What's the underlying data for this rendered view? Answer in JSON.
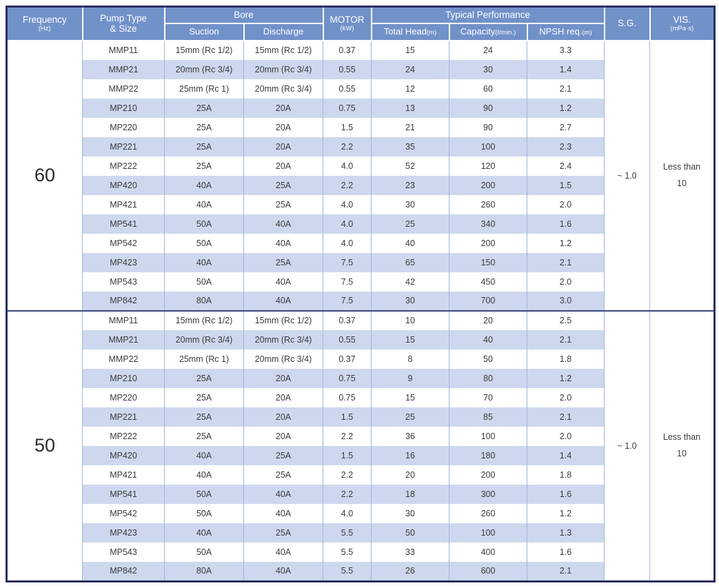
{
  "header": {
    "frequency_label": "Frequency",
    "frequency_unit": "(Hz)",
    "pump_type_line1": "Pump Type",
    "pump_type_line2": "& Size",
    "bore_label": "Bore",
    "suction_label": "Suction",
    "discharge_label": "Discharge",
    "motor_label": "MOTOR",
    "motor_unit": "(kW)",
    "performance_label": "Typical Performance",
    "total_head_label": "Total Head",
    "total_head_unit": "(m)",
    "capacity_label": "Capacity",
    "capacity_unit": "(ℓ/min.)",
    "npsh_label": "NPSH req.",
    "npsh_unit": "(m)",
    "sg_label": "S.G.",
    "vis_label": "VIS.",
    "vis_unit": "(mPa·s)"
  },
  "column_keys": [
    "pump-model",
    "bore-suction",
    "bore-discharge",
    "motor-kw",
    "total-head",
    "capacity",
    "npsh-req"
  ],
  "sections": [
    {
      "frequency": "60",
      "sg": "~ 1.0",
      "vis_lines": [
        "Less than",
        "10"
      ],
      "rows": [
        [
          "MMP11",
          "15mm (Rc 1/2)",
          "15mm (Rc 1/2)",
          "0.37",
          "15",
          "24",
          "3.3"
        ],
        [
          "MMP21",
          "20mm (Rc 3/4)",
          "20mm (Rc 3/4)",
          "0.55",
          "24",
          "30",
          "1.4"
        ],
        [
          "MMP22",
          "25mm (Rc 1)",
          "20mm (Rc 3/4)",
          "0.55",
          "12",
          "60",
          "2.1"
        ],
        [
          "MP210",
          "25A",
          "20A",
          "0.75",
          "13",
          "90",
          "1.2"
        ],
        [
          "MP220",
          "25A",
          "20A",
          "1.5",
          "21",
          "90",
          "2.7"
        ],
        [
          "MP221",
          "25A",
          "20A",
          "2.2",
          "35",
          "100",
          "2.3"
        ],
        [
          "MP222",
          "25A",
          "20A",
          "4.0",
          "52",
          "120",
          "2.4"
        ],
        [
          "MP420",
          "40A",
          "25A",
          "2.2",
          "23",
          "200",
          "1.5"
        ],
        [
          "MP421",
          "40A",
          "25A",
          "4.0",
          "30",
          "260",
          "2.0"
        ],
        [
          "MP541",
          "50A",
          "40A",
          "4.0",
          "25",
          "340",
          "1.6"
        ],
        [
          "MP542",
          "50A",
          "40A",
          "4.0",
          "40",
          "200",
          "1.2"
        ],
        [
          "MP423",
          "40A",
          "25A",
          "7.5",
          "65",
          "150",
          "2.1"
        ],
        [
          "MP543",
          "50A",
          "40A",
          "7.5",
          "42",
          "450",
          "2.0"
        ],
        [
          "MP842",
          "80A",
          "40A",
          "7.5",
          "30",
          "700",
          "3.0"
        ]
      ]
    },
    {
      "frequency": "50",
      "sg": "~ 1.0",
      "vis_lines": [
        "Less than",
        "10"
      ],
      "rows": [
        [
          "MMP11",
          "15mm (Rc 1/2)",
          "15mm (Rc 1/2)",
          "0.37",
          "10",
          "20",
          "2.5"
        ],
        [
          "MMP21",
          "20mm (Rc 3/4)",
          "20mm (Rc 3/4)",
          "0.55",
          "15",
          "40",
          "2.1"
        ],
        [
          "MMP22",
          "25mm (Rc 1)",
          "20mm (Rc 3/4)",
          "0.37",
          "8",
          "50",
          "1.8"
        ],
        [
          "MP210",
          "25A",
          "20A",
          "0.75",
          "9",
          "80",
          "1.2"
        ],
        [
          "MP220",
          "25A",
          "20A",
          "0.75",
          "15",
          "70",
          "2.0"
        ],
        [
          "MP221",
          "25A",
          "20A",
          "1.5",
          "25",
          "85",
          "2.1"
        ],
        [
          "MP222",
          "25A",
          "20A",
          "2.2",
          "36",
          "100",
          "2.0"
        ],
        [
          "MP420",
          "40A",
          "25A",
          "1.5",
          "16",
          "180",
          "1.4"
        ],
        [
          "MP421",
          "40A",
          "25A",
          "2.2",
          "20",
          "200",
          "1.8"
        ],
        [
          "MP541",
          "50A",
          "40A",
          "2.2",
          "18",
          "300",
          "1.6"
        ],
        [
          "MP542",
          "50A",
          "40A",
          "4.0",
          "30",
          "260",
          "1.2"
        ],
        [
          "MP423",
          "40A",
          "25A",
          "5.5",
          "50",
          "100",
          "1.3"
        ],
        [
          "MP543",
          "50A",
          "40A",
          "5.5",
          "33",
          "400",
          "1.6"
        ],
        [
          "MP842",
          "80A",
          "40A",
          "5.5",
          "26",
          "600",
          "2.1"
        ]
      ]
    }
  ],
  "colors": {
    "header_bg": "#7191c9",
    "header_text": "#ffffff",
    "stripe_bg": "#cdd8ee",
    "outer_border": "#2a3060",
    "cell_border": "#9fb6da",
    "section_divider": "#3a477f",
    "body_text": "#3a3a3a"
  }
}
